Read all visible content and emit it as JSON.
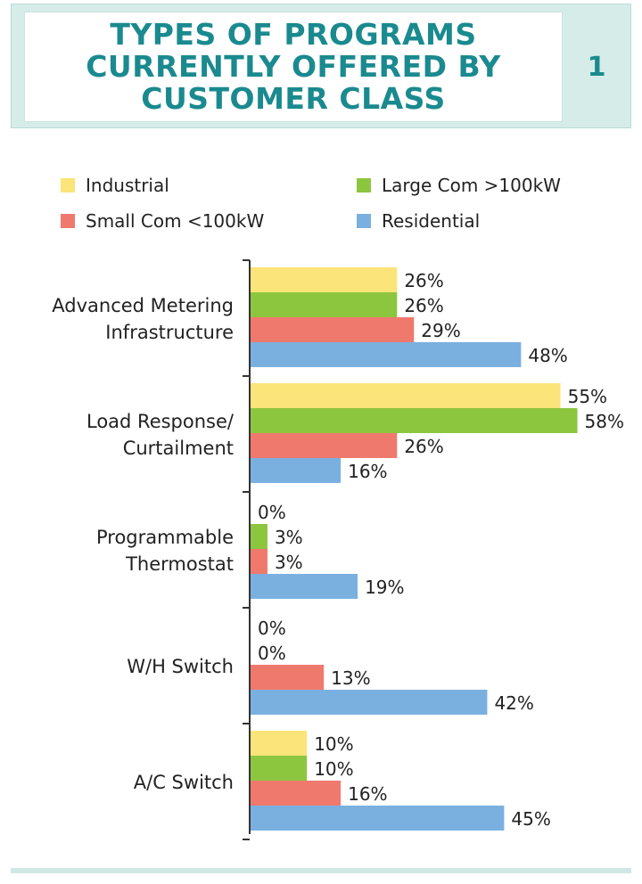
{
  "title": "TYPES OF PROGRAMS\nCURRENTLY OFFERED BY\nCUSTOMER CLASS",
  "figure_number": "1",
  "chart_data": {
    "type": "bar",
    "orientation": "horizontal",
    "title": "TYPES OF PROGRAMS CURRENTLY OFFERED BY CUSTOMER CLASS",
    "categories": [
      [
        "Advanced Metering",
        "Infrastructure"
      ],
      [
        "Load Response/",
        "Curtailment"
      ],
      [
        "Programmable",
        "Thermostat"
      ],
      [
        "W/H Switch"
      ],
      [
        "A/C Switch"
      ]
    ],
    "series": [
      {
        "name": "Industrial",
        "color": "#fbe479",
        "values": [
          26,
          55,
          0,
          0,
          10
        ],
        "labels": [
          "26%",
          "55%",
          "0%",
          "0%",
          "10%"
        ]
      },
      {
        "name": "Large Com >100kW",
        "color": "#8cc63f",
        "values": [
          26,
          58,
          3,
          0,
          10
        ],
        "labels": [
          "26%",
          "58%",
          "3%",
          "0%",
          "10%"
        ]
      },
      {
        "name": "Small Com <100kW",
        "color": "#f0796e",
        "values": [
          29,
          26,
          3,
          13,
          16
        ],
        "labels": [
          "29%",
          "26%",
          "3%",
          "13%",
          "16%"
        ]
      },
      {
        "name": "Residential",
        "color": "#7ab0e0",
        "values": [
          48,
          16,
          19,
          42,
          45
        ],
        "labels": [
          "48%",
          "16%",
          "19%",
          "42%",
          "45%"
        ]
      }
    ],
    "legend": [
      {
        "name": "Industrial",
        "color": "#fbe479"
      },
      {
        "name": "Large Com >100kW",
        "color": "#8cc63f"
      },
      {
        "name": "Small Com <100kW",
        "color": "#f0796e"
      },
      {
        "name": "Residential",
        "color": "#7ab0e0"
      }
    ],
    "value_suffix": "%",
    "xlim": [
      0,
      70
    ],
    "grid": false,
    "legend_position": "top"
  }
}
